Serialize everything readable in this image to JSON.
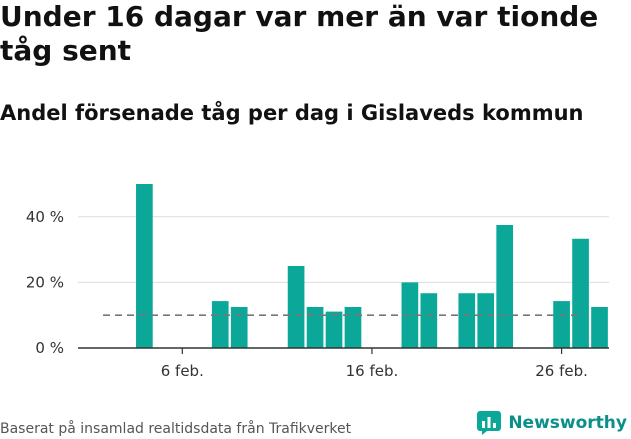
{
  "title": "Under 16 dagar var mer än var tionde tåg sent",
  "subtitle": "Andel försenade tåg per dag i Gislaveds kommun",
  "source": "Baserat på insamlad realtidsdata från Trafikverket",
  "brand": {
    "name": "Newsworthy",
    "icon": "newsworthy-logo-icon"
  },
  "colors": {
    "bar": "#0ba89a",
    "reference_line": "#777777",
    "grid": "#dddddd",
    "axis": "#333333"
  },
  "chart_data": {
    "type": "bar",
    "x_start": "2023-02-01",
    "x_end": "2023-03-01",
    "x": [
      "2023-02-04",
      "2023-02-05",
      "2023-02-06",
      "2023-02-07",
      "2023-02-08",
      "2023-02-09",
      "2023-02-10",
      "2023-02-11",
      "2023-02-12",
      "2023-02-13",
      "2023-02-14",
      "2023-02-15",
      "2023-02-16",
      "2023-02-17",
      "2023-02-18",
      "2023-02-19",
      "2023-02-20",
      "2023-02-21",
      "2023-02-22",
      "2023-02-23",
      "2023-02-24",
      "2023-02-25",
      "2023-02-26",
      "2023-02-27",
      "2023-02-28"
    ],
    "values": [
      50,
      0,
      0,
      0,
      14.3,
      12.5,
      0,
      0,
      25,
      12.5,
      11.1,
      12.5,
      0,
      0,
      20,
      16.7,
      0,
      16.7,
      16.7,
      37.5,
      0,
      0,
      14.3,
      33.3,
      12.5
    ],
    "reference_value": 10,
    "xticks": [
      {
        "date": "2023-02-06",
        "label": "6 feb."
      },
      {
        "date": "2023-02-16",
        "label": "16 feb."
      },
      {
        "date": "2023-02-26",
        "label": "26 feb."
      }
    ],
    "yticks": [
      {
        "value": 0,
        "label": "0 %"
      },
      {
        "value": 20,
        "label": "20 %"
      },
      {
        "value": 40,
        "label": "40 %"
      }
    ],
    "ylim": [
      0,
      50
    ],
    "grid": true
  }
}
